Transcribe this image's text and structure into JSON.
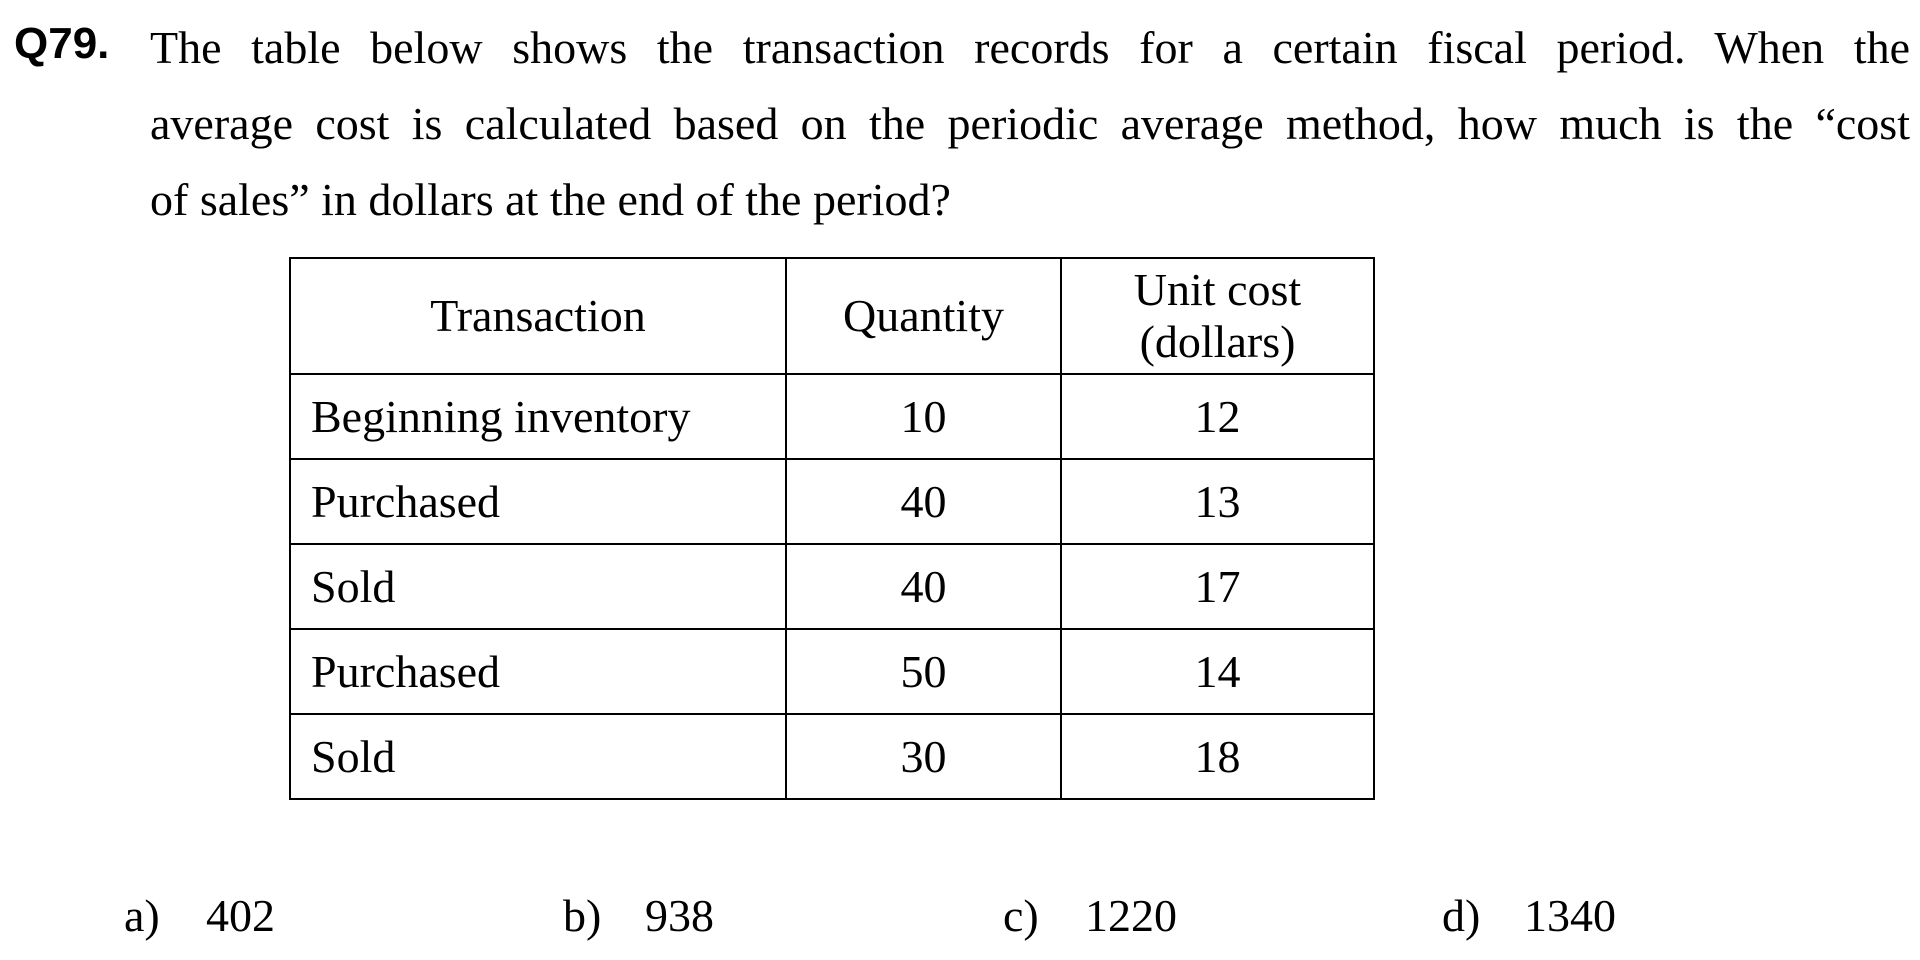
{
  "question": {
    "number": "Q79.",
    "lines": [
      "The table below shows the transaction records for a certain fiscal period.  When the",
      "average cost is calculated based on the periodic average method, how much is the “cost",
      "of sales” in dollars at the end of the period?"
    ]
  },
  "table": {
    "headers": {
      "transaction": "Transaction",
      "quantity": "Quantity",
      "unit_cost_line1": "Unit cost",
      "unit_cost_line2": "(dollars)"
    },
    "rows": [
      {
        "transaction": "Beginning inventory",
        "quantity": "10",
        "unit_cost": "12"
      },
      {
        "transaction": "Purchased",
        "quantity": "40",
        "unit_cost": "13"
      },
      {
        "transaction": "Sold",
        "quantity": "40",
        "unit_cost": "17"
      },
      {
        "transaction": "Purchased",
        "quantity": "50",
        "unit_cost": "14"
      },
      {
        "transaction": "Sold",
        "quantity": "30",
        "unit_cost": "18"
      }
    ]
  },
  "options": [
    {
      "letter": "a)",
      "value": "402"
    },
    {
      "letter": "b)",
      "value": "938"
    },
    {
      "letter": "c)",
      "value": "1220"
    },
    {
      "letter": "d)",
      "value": "1340"
    }
  ]
}
